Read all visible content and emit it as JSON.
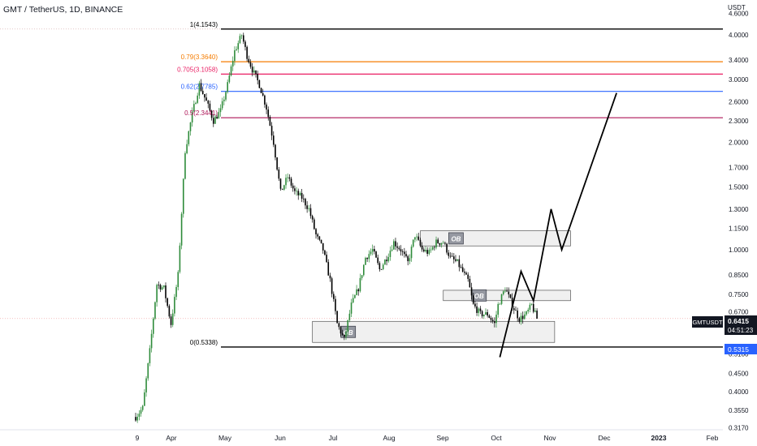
{
  "header": {
    "symbol_title": "GMT / TetherUS, 1D, BINANCE",
    "currency": "USDT"
  },
  "price_tags": {
    "symbol": "GMTUSDT",
    "price": "0.6415",
    "countdown": "04:51:23",
    "level": "0.5315"
  },
  "colors": {
    "bull": "#26a69a",
    "bear": "#000000",
    "candle_up": "#2e8b3a",
    "fib_1": "#000000",
    "fib_079": "#f57c00",
    "fib_0705": "#e91e63",
    "fib_062": "#2962ff",
    "fib_05": "#ad1457",
    "fib_0": "#000000",
    "price_tag_bg": "#131722",
    "level_tag_bg": "#2962ff"
  },
  "chart_data": {
    "type": "candlestick",
    "y_scale": "log",
    "ylim": [
      0.31,
      4.9
    ],
    "x_ticks": [
      "9",
      "Apr",
      "May",
      "Jun",
      "Jul",
      "Aug",
      "Sep",
      "Oct",
      "Nov",
      "Dec",
      "2023",
      "Feb"
    ],
    "y_ticks": [
      4.6,
      4.0,
      3.4,
      3.0,
      2.6,
      2.3,
      2.0,
      1.7,
      1.5,
      1.3,
      1.15,
      1.0,
      0.85,
      0.75,
      0.67,
      0.59,
      0.51,
      0.45,
      0.4,
      0.355,
      0.317
    ],
    "y_tick_labels": [
      "4.6000",
      "4.0000",
      "3.4000",
      "3.0000",
      "2.6000",
      "2.3000",
      "2.0000",
      "1.7000",
      "1.5000",
      "1.3000",
      "1.1500",
      "1.0000",
      "0.8500",
      "0.7500",
      "0.6700",
      "0.5900",
      "0.5100",
      "0.4500",
      "0.4000",
      "0.3550",
      "0.3170"
    ],
    "fib_levels": [
      {
        "ratio": 1,
        "price": 4.1543,
        "label": "1(4.1543)",
        "color": "#000000"
      },
      {
        "ratio": 0.79,
        "price": 3.364,
        "label": "0.79(3.3640)",
        "color": "#f57c00"
      },
      {
        "ratio": 0.705,
        "price": 3.1058,
        "label": "0.705(3.1058)",
        "color": "#e91e63"
      },
      {
        "ratio": 0.62,
        "price": 2.7785,
        "label": "0.62(2.7785)",
        "color": "#2962ff"
      },
      {
        "ratio": 0.5,
        "price": 2.3441,
        "label": "0.5(2.3441)",
        "color": "#ad1457"
      },
      {
        "ratio": 0,
        "price": 0.5338,
        "label": "0(0.5338)",
        "color": "#000000"
      }
    ],
    "order_blocks": [
      {
        "label": "OB",
        "x_start": "2022-08-17",
        "x_end": "2022-11-10",
        "top": 1.13,
        "bottom": 1.025
      },
      {
        "label": "OB",
        "x_start": "2022-08-30",
        "x_end": "2022-11-10",
        "top": 0.77,
        "bottom": 0.72
      },
      {
        "label": "OB",
        "x_start": "2022-06-17",
        "x_end": "2022-11-01",
        "top": 0.63,
        "bottom": 0.55
      }
    ],
    "projection_path": [
      {
        "date": "2022-10-01",
        "price": 0.5
      },
      {
        "date": "2022-10-13",
        "price": 0.87
      },
      {
        "date": "2022-10-20",
        "price": 0.72
      },
      {
        "date": "2022-10-30",
        "price": 1.3
      },
      {
        "date": "2022-11-05",
        "price": 1.0
      },
      {
        "date": "2022-12-06",
        "price": 2.75
      }
    ],
    "current_price": 0.6415
  }
}
